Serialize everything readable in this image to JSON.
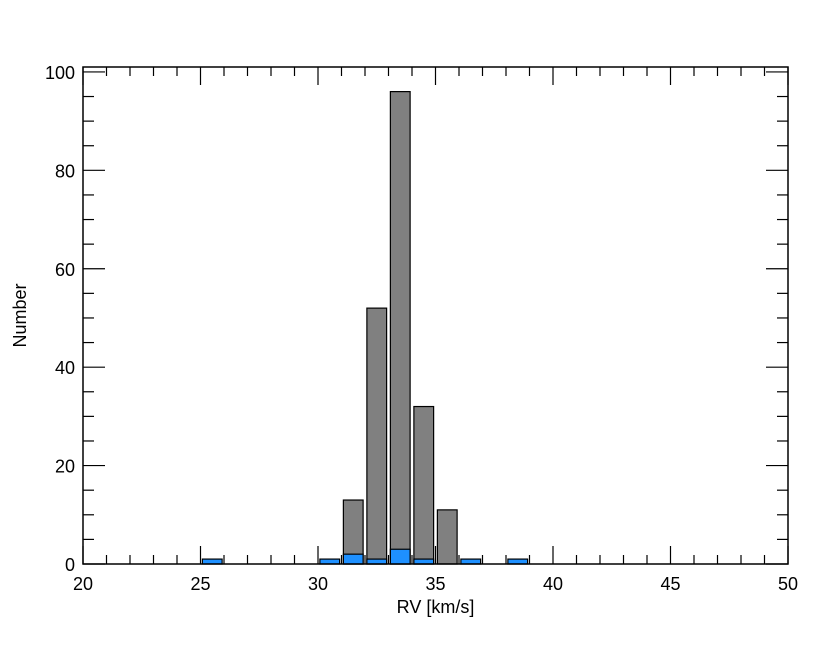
{
  "chart_data": {
    "type": "bar",
    "xlabel": "RV [km/s]",
    "ylabel": "Number",
    "xlim": [
      20,
      50
    ],
    "ylim": [
      0,
      101
    ],
    "x_ticks": [
      "20",
      "25",
      "30",
      "35",
      "40",
      "45",
      "50"
    ],
    "y_ticks": [
      "0",
      "20",
      "40",
      "60",
      "80",
      "100"
    ],
    "grid": false,
    "series": [
      {
        "color": "#808080",
        "x": [
          31.5,
          32.5,
          33.5,
          34.5,
          35.5
        ],
        "values": [
          13,
          52,
          96,
          32,
          11
        ]
      },
      {
        "color": "#1e90ff",
        "x": [
          25.5,
          30.5,
          31.5,
          32.5,
          33.5,
          34.5,
          36.5,
          38.5
        ],
        "values": [
          1,
          1,
          2,
          1,
          3,
          1,
          1,
          1
        ]
      }
    ]
  }
}
